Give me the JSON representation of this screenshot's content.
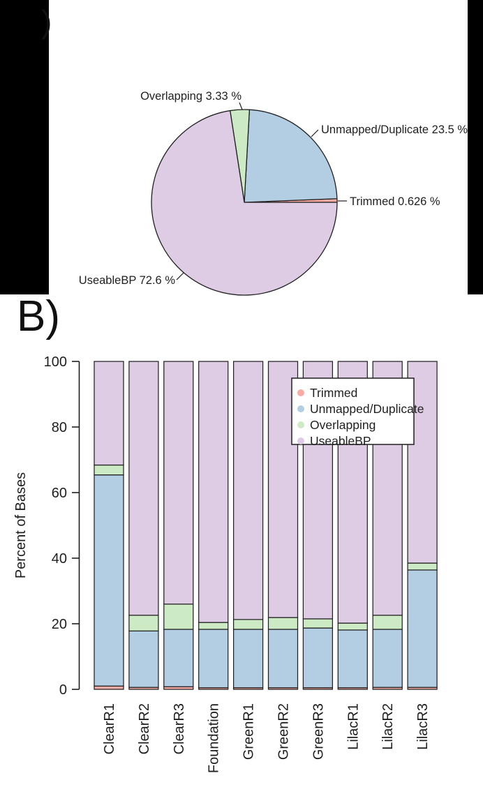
{
  "panels": {
    "a": {
      "visible_label": ")"
    },
    "b": {
      "visible_label": "B)"
    }
  },
  "colors": {
    "trimmed": "#F9ABA4",
    "unmapped": "#B3CDE3",
    "overlapping": "#CCEBC5",
    "useable": "#DECBE4",
    "stroke": "#1f1f1f"
  },
  "chart_data": [
    {
      "type": "pie",
      "title": "",
      "direction": "counterclockwise-from-3-oclock",
      "slices": [
        {
          "label": "Trimmed",
          "value": 0.626,
          "display": "Trimmed 0.626 %",
          "color_key": "trimmed"
        },
        {
          "label": "Unmapped/Duplicate",
          "value": 23.5,
          "display": "Unmapped/Duplicate 23.5 %",
          "color_key": "unmapped"
        },
        {
          "label": "Overlapping",
          "value": 3.33,
          "display": "Overlapping 3.33 %",
          "color_key": "overlapping"
        },
        {
          "label": "UseableBP",
          "value": 72.6,
          "display": "UseableBP 72.6 %",
          "color_key": "useable"
        }
      ]
    },
    {
      "type": "bar",
      "stacked": true,
      "title": "",
      "xlabel": "",
      "ylabel": "Percent of Bases",
      "ylim": [
        0,
        100
      ],
      "yticks": [
        0,
        20,
        40,
        60,
        80,
        100
      ],
      "grid": false,
      "legend": {
        "position": "inside-top-right",
        "entries": [
          "Trimmed",
          "Unmapped/Duplicate",
          "Overlapping",
          "UseableBP"
        ]
      },
      "categories": [
        "ClearR1",
        "ClearR2",
        "ClearR3",
        "Foundation",
        "GreenR1",
        "GreenR2",
        "GreenR3",
        "LilacR1",
        "LilacR2",
        "LilacR3"
      ],
      "series": [
        {
          "name": "Trimmed",
          "color_key": "trimmed",
          "values": [
            1.0,
            0.6,
            0.8,
            0.5,
            0.5,
            0.5,
            0.5,
            0.5,
            0.6,
            0.6
          ]
        },
        {
          "name": "Unmapped/Duplicate",
          "color_key": "unmapped",
          "values": [
            64.4,
            17.2,
            17.5,
            17.8,
            17.8,
            17.8,
            18.2,
            17.6,
            17.7,
            35.8
          ]
        },
        {
          "name": "Overlapping",
          "color_key": "overlapping",
          "values": [
            3.0,
            4.8,
            7.7,
            2.1,
            3.0,
            3.6,
            2.8,
            2.1,
            4.3,
            2.1
          ]
        },
        {
          "name": "UseableBP",
          "color_key": "useable",
          "values": [
            31.6,
            77.4,
            74.0,
            79.6,
            78.7,
            78.1,
            78.5,
            79.8,
            77.4,
            61.5
          ]
        }
      ]
    }
  ]
}
